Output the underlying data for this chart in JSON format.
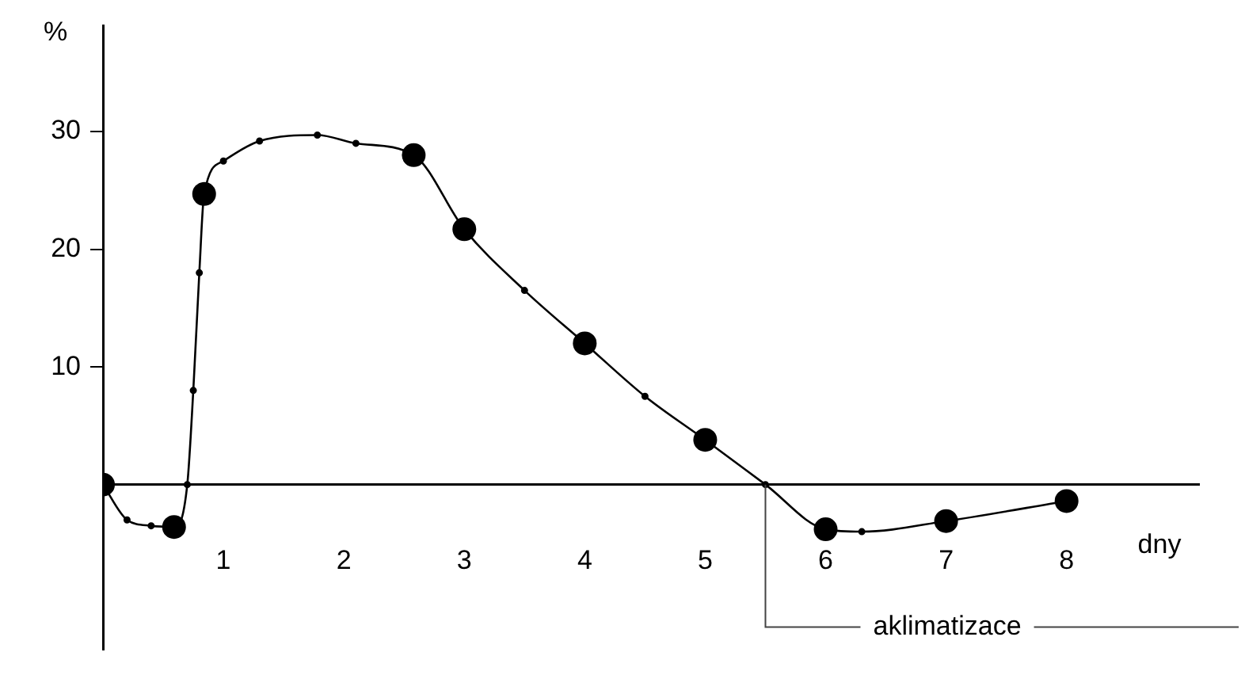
{
  "chart_data": {
    "type": "line",
    "xlabel": "dny",
    "ylabel": "%",
    "series": [
      {
        "color": "#000000",
        "marker": "circle",
        "x": [
          0,
          0.2,
          0.4,
          0.59,
          0.7,
          0.75,
          0.8,
          0.84,
          1.0,
          1.3,
          1.78,
          2.1,
          2.58,
          3,
          3.5,
          4,
          4.5,
          5,
          5.5,
          6,
          6.3,
          7,
          8
        ],
        "values": [
          0,
          -3,
          -3.5,
          -3.6,
          0,
          8,
          18,
          24.7,
          27.5,
          29.2,
          29.7,
          29,
          28,
          21.7,
          16.5,
          12,
          7.5,
          3.8,
          0,
          -3.8,
          -4,
          -3.1,
          -1.4
        ]
      },
      {
        "type": "scatter",
        "color": "#000000",
        "marker": "circle",
        "x": [
          0,
          0.59,
          0.84,
          2.58,
          3,
          4,
          5,
          6,
          7,
          8
        ],
        "values": [
          0,
          -3.6,
          24.7,
          28,
          21.7,
          12,
          3.8,
          -3.8,
          -3.1,
          -1.4
        ]
      }
    ],
    "xlim": [
      0,
      9.1
    ],
    "xticks": [
      1,
      2,
      3,
      4,
      5,
      6,
      7,
      8
    ],
    "ylim": [
      -14,
      39
    ],
    "yticks": [
      10,
      20,
      30
    ],
    "ref_lines": [
      {
        "axis": "x",
        "value": 5.5,
        "label": "aklimatizace"
      }
    ],
    "grid": false,
    "legend": false
  }
}
